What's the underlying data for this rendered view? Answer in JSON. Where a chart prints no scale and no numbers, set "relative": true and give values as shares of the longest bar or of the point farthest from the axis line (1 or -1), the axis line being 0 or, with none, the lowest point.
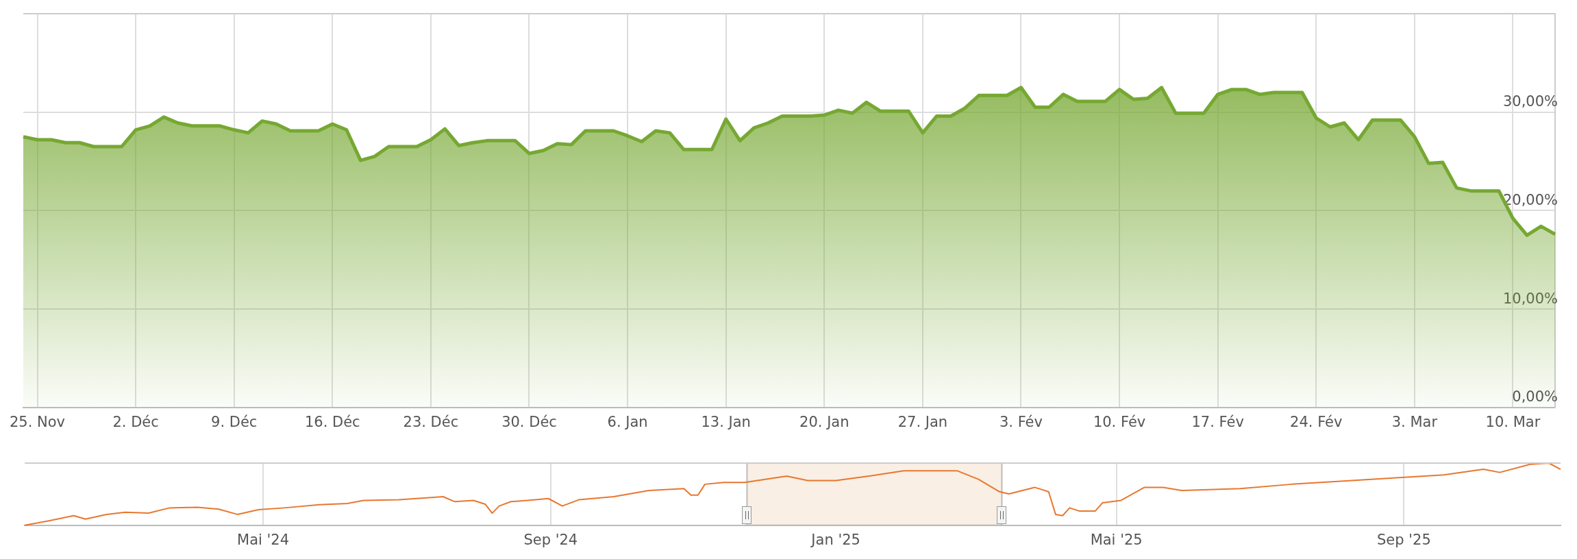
{
  "chart_data": [
    {
      "type": "area",
      "grid": true,
      "legend": false,
      "marker": "none",
      "xlim": [
        "2024-11-24",
        "2025-03-13"
      ],
      "xticks": [
        {
          "value": "2024-11-25",
          "label": "25. Nov"
        },
        {
          "value": "2024-12-02",
          "label": "2. Déc"
        },
        {
          "value": "2024-12-09",
          "label": "9. Déc"
        },
        {
          "value": "2024-12-16",
          "label": "16. Déc"
        },
        {
          "value": "2024-12-23",
          "label": "23. Déc"
        },
        {
          "value": "2024-12-30",
          "label": "30. Déc"
        },
        {
          "value": "2025-01-06",
          "label": "6. Jan"
        },
        {
          "value": "2025-01-13",
          "label": "13. Jan"
        },
        {
          "value": "2025-01-20",
          "label": "20. Jan"
        },
        {
          "value": "2025-01-27",
          "label": "27. Jan"
        },
        {
          "value": "2025-02-03",
          "label": "3. Fév"
        },
        {
          "value": "2025-02-10",
          "label": "10. Fév"
        },
        {
          "value": "2025-02-17",
          "label": "17. Fév"
        },
        {
          "value": "2025-02-24",
          "label": "24. Fév"
        },
        {
          "value": "2025-03-03",
          "label": "3. Mar"
        },
        {
          "value": "2025-03-10",
          "label": "10. Mar"
        }
      ],
      "ylim": [
        0,
        40
      ],
      "yticks": [
        {
          "value": 0,
          "label": "0,00%"
        },
        {
          "value": 10,
          "label": "10,00%"
        },
        {
          "value": 20,
          "label": "20,00%"
        },
        {
          "value": 30,
          "label": "30,00%"
        },
        {
          "value": 40,
          "label": null
        }
      ],
      "x": [
        "2024-11-24",
        "2024-11-25",
        "2024-11-26",
        "2024-11-27",
        "2024-11-28",
        "2024-11-29",
        "2024-11-30",
        "2024-12-01",
        "2024-12-02",
        "2024-12-03",
        "2024-12-04",
        "2024-12-05",
        "2024-12-06",
        "2024-12-07",
        "2024-12-08",
        "2024-12-09",
        "2024-12-10",
        "2024-12-11",
        "2024-12-12",
        "2024-12-13",
        "2024-12-14",
        "2024-12-15",
        "2024-12-16",
        "2024-12-17",
        "2024-12-18",
        "2024-12-19",
        "2024-12-20",
        "2024-12-21",
        "2024-12-22",
        "2024-12-23",
        "2024-12-24",
        "2024-12-25",
        "2024-12-26",
        "2024-12-27",
        "2024-12-28",
        "2024-12-29",
        "2024-12-30",
        "2024-12-31",
        "2025-01-01",
        "2025-01-02",
        "2025-01-03",
        "2025-01-04",
        "2025-01-05",
        "2025-01-06",
        "2025-01-07",
        "2025-01-08",
        "2025-01-09",
        "2025-01-10",
        "2025-01-11",
        "2025-01-12",
        "2025-01-13",
        "2025-01-14",
        "2025-01-15",
        "2025-01-16",
        "2025-01-17",
        "2025-01-18",
        "2025-01-19",
        "2025-01-20",
        "2025-01-21",
        "2025-01-22",
        "2025-01-23",
        "2025-01-24",
        "2025-01-25",
        "2025-01-26",
        "2025-01-27",
        "2025-01-28",
        "2025-01-29",
        "2025-01-30",
        "2025-01-31",
        "2025-02-01",
        "2025-02-02",
        "2025-02-03",
        "2025-02-04",
        "2025-02-05",
        "2025-02-06",
        "2025-02-07",
        "2025-02-08",
        "2025-02-09",
        "2025-02-10",
        "2025-02-11",
        "2025-02-12",
        "2025-02-13",
        "2025-02-14",
        "2025-02-15",
        "2025-02-16",
        "2025-02-17",
        "2025-02-18",
        "2025-02-19",
        "2025-02-20",
        "2025-02-21",
        "2025-02-22",
        "2025-02-23",
        "2025-02-24",
        "2025-02-25",
        "2025-02-26",
        "2025-02-27",
        "2025-02-28",
        "2025-03-01",
        "2025-03-02",
        "2025-03-03",
        "2025-03-04",
        "2025-03-05",
        "2025-03-06",
        "2025-03-07",
        "2025-03-08",
        "2025-03-09",
        "2025-03-10",
        "2025-03-11",
        "2025-03-12",
        "2025-03-13"
      ],
      "series": [
        {
          "color": "#76a832",
          "values": [
            27.5,
            27.2,
            27.2,
            26.9,
            26.9,
            26.5,
            26.5,
            26.5,
            28.2,
            28.6,
            29.5,
            28.9,
            28.6,
            28.6,
            28.6,
            28.2,
            27.9,
            29.1,
            28.8,
            28.1,
            28.1,
            28.1,
            28.8,
            28.2,
            25.1,
            25.5,
            26.5,
            26.5,
            26.5,
            27.2,
            28.3,
            26.6,
            26.9,
            27.1,
            27.1,
            27.1,
            25.8,
            26.1,
            26.8,
            26.7,
            28.1,
            28.1,
            28.1,
            27.6,
            27.0,
            28.1,
            27.9,
            26.2,
            26.2,
            26.2,
            29.3,
            27.1,
            28.4,
            28.9,
            29.6,
            29.6,
            29.6,
            29.7,
            30.2,
            29.9,
            31.0,
            30.1,
            30.1,
            30.1,
            27.9,
            29.6,
            29.6,
            30.4,
            31.7,
            31.7,
            31.7,
            32.5,
            30.5,
            30.5,
            31.8,
            31.1,
            31.1,
            31.1,
            32.3,
            31.3,
            31.4,
            32.5,
            29.9,
            29.9,
            29.9,
            31.8,
            32.3,
            32.3,
            31.8,
            32.0,
            32.0,
            32.0,
            29.4,
            28.5,
            28.9,
            27.2,
            29.2,
            29.2,
            29.2,
            27.5,
            24.8,
            24.9,
            22.3,
            22.0,
            22.0,
            22.0,
            19.2,
            17.5,
            18.4,
            17.6
          ]
        }
      ]
    },
    {
      "type": "line",
      "relative": true,
      "grid": "x",
      "legend": false,
      "marker": "none",
      "tick_labels": "x",
      "xlim": [
        "2024-01-20",
        "2025-11-07"
      ],
      "xticks": [
        {
          "value": "2024-05-01",
          "label": "Mai '24"
        },
        {
          "value": "2024-09-01",
          "label": "Sep '24"
        },
        {
          "value": "2025-01-01",
          "label": "Jan '25"
        },
        {
          "value": "2025-05-01",
          "label": "Mai '25"
        },
        {
          "value": "2025-09-01",
          "label": "Sep '25"
        }
      ],
      "bands": [
        {
          "axis": "x",
          "from": "2024-11-24",
          "to": "2025-03-13",
          "color": "#f9efe4"
        }
      ],
      "x": [
        "2024-01-20",
        "2024-01-30",
        "2024-02-10",
        "2024-02-15",
        "2024-02-24",
        "2024-03-03",
        "2024-03-13",
        "2024-03-22",
        "2024-04-03",
        "2024-04-12",
        "2024-04-20",
        "2024-04-29",
        "2024-05-10",
        "2024-05-25",
        "2024-06-06",
        "2024-06-13",
        "2024-06-28",
        "2024-07-13",
        "2024-07-17",
        "2024-07-22",
        "2024-07-30",
        "2024-08-04",
        "2024-08-07",
        "2024-08-10",
        "2024-08-15",
        "2024-08-22",
        "2024-08-31",
        "2024-09-06",
        "2024-09-13",
        "2024-09-28",
        "2024-10-13",
        "2024-10-28",
        "2024-10-31",
        "2024-11-03",
        "2024-11-06",
        "2024-11-14",
        "2024-11-23",
        "2024-12-11",
        "2024-12-20",
        "2025-01-01",
        "2025-01-15",
        "2025-01-30",
        "2025-02-14",
        "2025-02-22",
        "2025-03-03",
        "2025-03-12",
        "2025-03-16",
        "2025-03-27",
        "2025-04-02",
        "2025-04-05",
        "2025-04-08",
        "2025-04-11",
        "2025-04-15",
        "2025-04-22",
        "2025-04-25",
        "2025-05-03",
        "2025-05-13",
        "2025-05-21",
        "2025-05-29",
        "2025-06-23",
        "2025-07-15",
        "2025-08-06",
        "2025-08-19",
        "2025-08-31",
        "2025-09-18",
        "2025-10-05",
        "2025-10-12",
        "2025-10-25",
        "2025-11-02",
        "2025-11-07"
      ],
      "series": [
        {
          "color": "#e8772e",
          "values": [
            0,
            0.07,
            0.155,
            0.1,
            0.175,
            0.21,
            0.195,
            0.28,
            0.29,
            0.26,
            0.175,
            0.25,
            0.28,
            0.33,
            0.35,
            0.4,
            0.41,
            0.45,
            0.46,
            0.38,
            0.4,
            0.34,
            0.195,
            0.31,
            0.38,
            0.4,
            0.43,
            0.31,
            0.41,
            0.46,
            0.56,
            0.59,
            0.485,
            0.485,
            0.66,
            0.69,
            0.69,
            0.79,
            0.72,
            0.72,
            0.79,
            0.875,
            0.875,
            0.875,
            0.74,
            0.54,
            0.505,
            0.61,
            0.54,
            0.175,
            0.155,
            0.28,
            0.23,
            0.23,
            0.36,
            0.4,
            0.61,
            0.61,
            0.56,
            0.59,
            0.66,
            0.71,
            0.74,
            0.77,
            0.81,
            0.9,
            0.85,
            0.98,
            1.0,
            0.9
          ]
        }
      ]
    }
  ]
}
